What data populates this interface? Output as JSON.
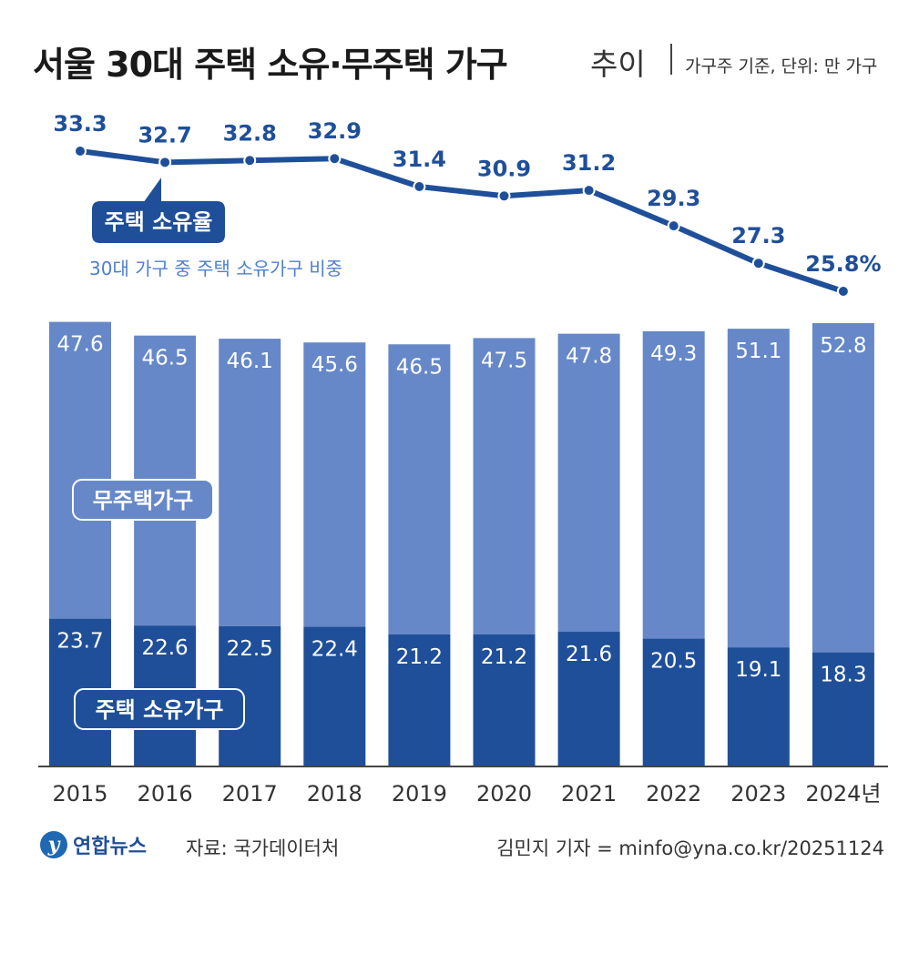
{
  "header": {
    "title": "서울 30대 주택 소유·무주택 가구",
    "subtitle": "추이",
    "note": "가구주 기준, 단위: 만 가구"
  },
  "chart_data": {
    "type": "bar",
    "stacked": true,
    "categories": [
      "2015",
      "2016",
      "2017",
      "2018",
      "2019",
      "2020",
      "2021",
      "2022",
      "2023",
      "2024년"
    ],
    "series": [
      {
        "name": "주택 소유가구",
        "values": [
          23.7,
          22.6,
          22.5,
          22.4,
          21.2,
          21.2,
          21.6,
          20.5,
          19.1,
          18.3
        ],
        "color": "#1f4f99"
      },
      {
        "name": "무주택가구",
        "values": [
          47.6,
          46.5,
          46.1,
          45.6,
          46.5,
          47.5,
          47.8,
          49.3,
          51.1,
          52.8
        ],
        "color": "#6688c8"
      }
    ],
    "line": {
      "name": "주택 소유율",
      "description": "30대 가구 중 주택 소유가구 비중",
      "values": [
        33.3,
        32.7,
        32.8,
        32.9,
        31.4,
        30.9,
        31.2,
        29.3,
        27.3,
        25.8
      ],
      "labels": [
        "33.3",
        "32.7",
        "32.8",
        "32.9",
        "31.4",
        "30.9",
        "31.2",
        "29.3",
        "27.3",
        "25.8%"
      ],
      "color": "#1f4f99"
    }
  },
  "footer": {
    "logo_text": "연합뉴스",
    "logo_mark": "y",
    "source": "자료: 국가데이터처",
    "credit": "김민지 기자 = minfo@yna.co.kr/20251124"
  }
}
